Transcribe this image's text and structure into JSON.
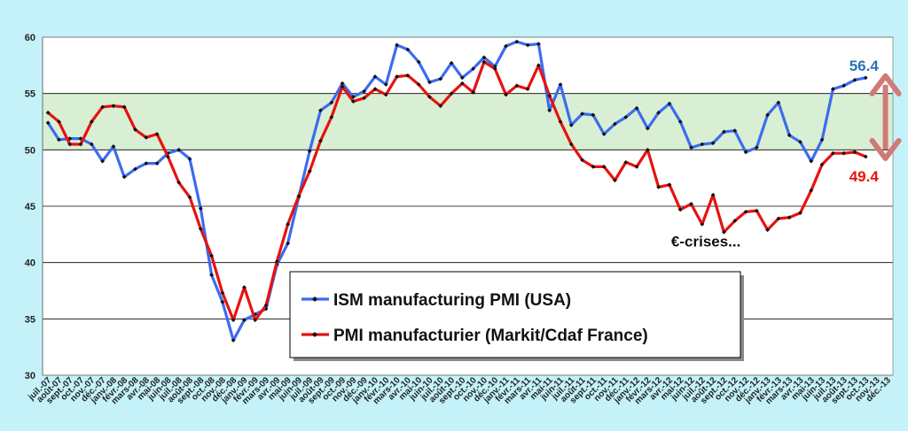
{
  "chart_data": {
    "type": "line",
    "ylim": [
      30,
      60
    ],
    "yticks": [
      30,
      35,
      40,
      45,
      50,
      55,
      60
    ],
    "band": [
      50,
      55
    ],
    "band_color": "#d9efd3",
    "grid": true,
    "legend_position": "bottom-center",
    "x": [
      "juil.-07",
      "août-07",
      "sept.-07",
      "oct.-07",
      "nov.-07",
      "déc.-07",
      "janv.-08",
      "févr.-08",
      "mars-08",
      "avr.-08",
      "mai-08",
      "juin-08",
      "juil.-08",
      "août-08",
      "sept.-08",
      "oct.-08",
      "nov.-08",
      "déc.-08",
      "janv.-09",
      "févr.-09",
      "mars-09",
      "avr.-09",
      "mai-09",
      "juin-09",
      "juil.-09",
      "août-09",
      "sept.-09",
      "oct.-09",
      "nov.-09",
      "déc.-09",
      "janv.-10",
      "févr.-10",
      "mars-10",
      "avr.-10",
      "mai-10",
      "juin-10",
      "juil.-10",
      "août-10",
      "sept.-10",
      "oct.-10",
      "nov.-10",
      "déc.-10",
      "janv.-11",
      "févr.-11",
      "mars-11",
      "avr.-11",
      "mai-11",
      "juin-11",
      "juil.-11",
      "août-11",
      "sept.-11",
      "oct.-11",
      "nov.-11",
      "déc.-11",
      "janv.-12",
      "févr.-12",
      "mars-12",
      "avr.-12",
      "mai-12",
      "juin-12",
      "juil.-12",
      "août-12",
      "sept.-12",
      "oct.-12",
      "nov.-12",
      "déc.-12",
      "janv.-13",
      "févr.-13",
      "mars-13",
      "avr.-13",
      "mai-13",
      "juin-13",
      "juil.-13",
      "août-13",
      "sept.-13",
      "oct.-13",
      "nov.-13",
      "déc.-13"
    ],
    "series": [
      {
        "name": "ISM manufacturing PMI (USA)",
        "color": "#3b6cf0",
        "values": [
          52.4,
          50.9,
          51.0,
          51.0,
          50.5,
          49.0,
          50.3,
          47.6,
          48.3,
          48.8,
          48.8,
          49.7,
          50.0,
          49.2,
          44.8,
          38.9,
          36.5,
          33.1,
          34.9,
          35.4,
          35.9,
          39.8,
          41.7,
          45.8,
          49.9,
          53.5,
          54.2,
          55.9,
          54.7,
          55.2,
          56.5,
          55.8,
          59.3,
          58.9,
          57.8,
          56.0,
          56.3,
          57.7,
          56.4,
          57.2,
          58.2,
          57.4,
          59.2,
          59.6,
          59.3,
          59.4,
          53.5,
          55.8,
          52.2,
          53.2,
          53.1,
          51.4,
          52.3,
          52.9,
          53.7,
          51.9,
          53.3,
          54.1,
          52.5,
          50.2,
          50.5,
          50.6,
          51.6,
          51.7,
          49.8,
          50.2,
          53.1,
          54.2,
          51.3,
          50.7,
          49.0,
          50.9,
          55.4,
          55.7,
          56.2,
          56.4,
          null,
          null
        ],
        "end_label": "56.4"
      },
      {
        "name": "PMI manufacturier (Markit/Cdaf France)",
        "color": "#e8120e",
        "values": [
          53.3,
          52.5,
          50.5,
          50.5,
          52.5,
          53.8,
          53.9,
          53.8,
          51.8,
          51.1,
          51.4,
          49.4,
          47.1,
          45.8,
          43.0,
          40.6,
          37.3,
          34.9,
          37.8,
          34.9,
          36.2,
          40.1,
          43.4,
          45.9,
          48.1,
          50.8,
          52.9,
          55.6,
          54.3,
          54.6,
          55.4,
          54.9,
          56.5,
          56.6,
          55.8,
          54.7,
          53.9,
          55.0,
          55.9,
          55.1,
          57.8,
          57.2,
          54.9,
          55.7,
          55.4,
          57.5,
          54.8,
          52.5,
          50.5,
          49.1,
          48.5,
          48.5,
          47.3,
          48.9,
          48.5,
          50.0,
          46.7,
          46.9,
          44.7,
          45.2,
          43.4,
          46.0,
          42.7,
          43.7,
          44.5,
          44.6,
          42.9,
          43.9,
          44.0,
          44.4,
          46.4,
          48.7,
          49.7,
          49.7,
          49.8,
          49.4,
          null,
          null
        ],
        "end_label": "49.4"
      }
    ],
    "annotations": [
      {
        "text": "€-crises...",
        "x_index": 61,
        "y": 41.9
      }
    ],
    "arrow": {
      "x_index": 76,
      "from": 56.4,
      "to": 49.4,
      "color": "#d07a78"
    }
  }
}
